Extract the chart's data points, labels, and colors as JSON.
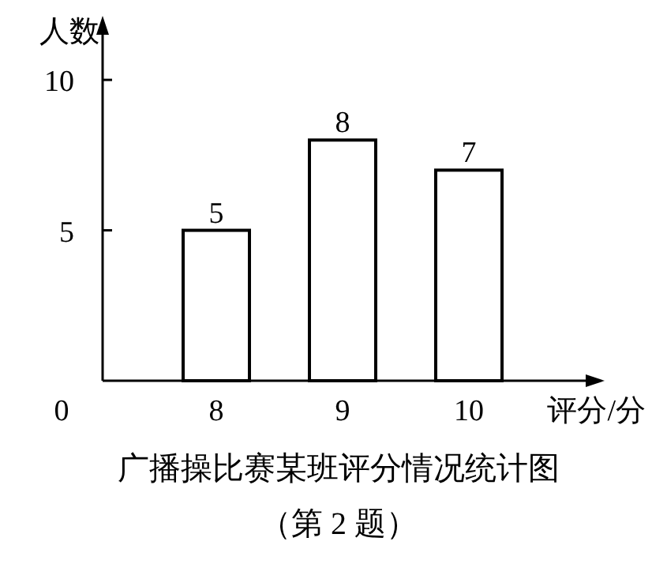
{
  "chart_data": {
    "type": "bar",
    "title": "广播操比赛某班评分情况统计图",
    "subtitle": "（第 2 题）",
    "ylabel": "人数",
    "xlabel": "评分/分",
    "categories": [
      "8",
      "9",
      "10"
    ],
    "values": [
      5,
      8,
      7
    ],
    "color": "#ffffff",
    "ylim": [
      0,
      11.5
    ],
    "yticks": [
      0,
      5,
      10
    ],
    "data_labels": true
  }
}
